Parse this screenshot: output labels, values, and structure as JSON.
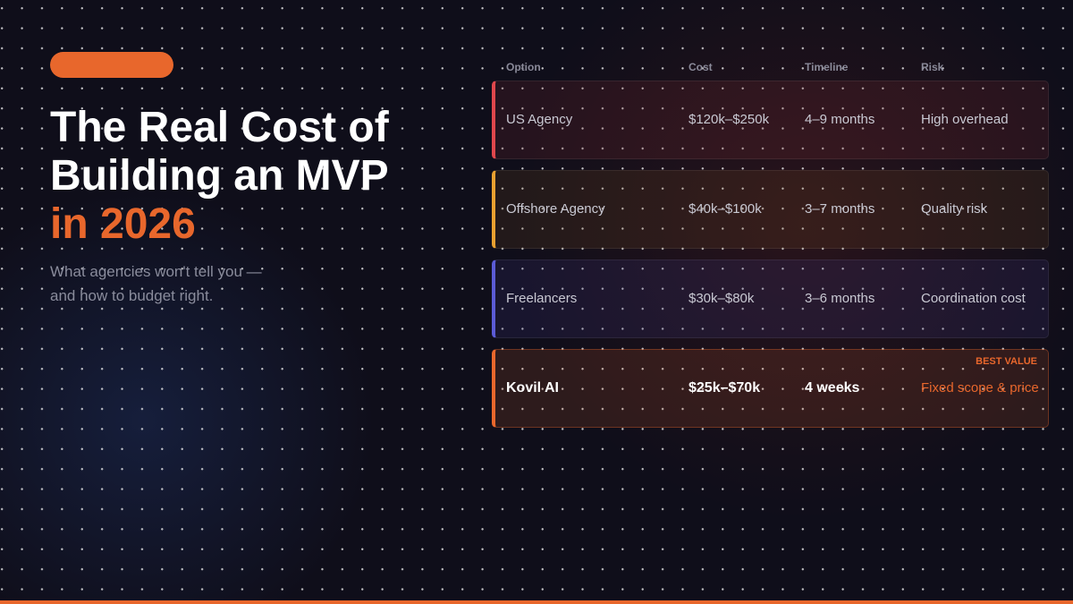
{
  "header": {
    "title_lines": [
      "The Real Cost of",
      "Building an MVP"
    ],
    "title_highlight": "in 2026",
    "subtitle_lines": [
      "What agencies won't tell you —",
      "and how to budget right."
    ]
  },
  "table": {
    "columns": [
      "Option",
      "Cost",
      "Timeline",
      "Risk"
    ],
    "rows": [
      [
        "US Agency",
        "$120k–$250k",
        "4–9 months",
        "High overhead"
      ],
      [
        "Offshore Agency",
        "$40k–$100k",
        "3–7 months",
        "Quality risk"
      ],
      [
        "Freelancers",
        "$30k–$80k",
        "3–6 months",
        "Coordination cost"
      ],
      [
        "Kovil AI",
        "$25k–$70k",
        "4 weeks",
        "Fixed scope & price"
      ]
    ],
    "badge": "BEST VALUE"
  }
}
